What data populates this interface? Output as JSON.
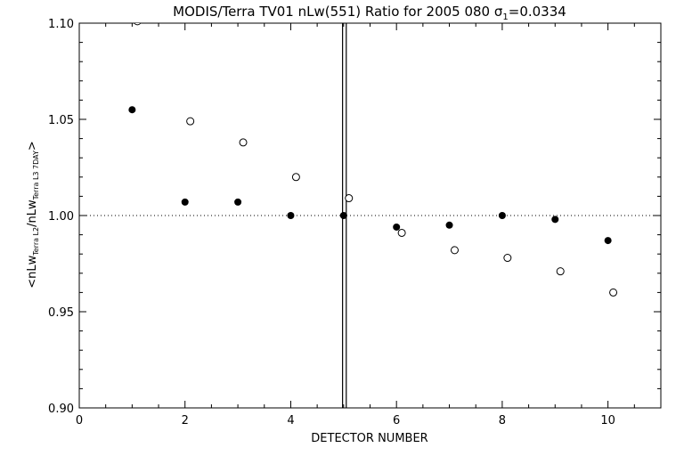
{
  "chart_data": {
    "type": "scatter",
    "title": "MODIS/Terra TV01 nLw(551) Ratio for 2005 080 σ",
    "title_sub": "1",
    "title_suffix": "=0.0334",
    "xlabel": "DETECTOR NUMBER",
    "ylabel": {
      "prefix": "<nLw",
      "sub1": "Terra L2",
      "mid": "/nLw",
      "sub2": "Terra L3 7DAY",
      "suffix": ">"
    },
    "xlim": [
      0,
      11
    ],
    "ylim": [
      0.9,
      1.1
    ],
    "x_ticks": [
      0,
      2,
      4,
      6,
      8,
      10
    ],
    "y_ticks": [
      0.9,
      0.95,
      1.0,
      1.05,
      1.1
    ],
    "x_tick_labels": [
      "0",
      "2",
      "4",
      "6",
      "8",
      "10"
    ],
    "y_tick_labels": [
      "0.90",
      "0.95",
      "1.00",
      "1.05",
      "1.10"
    ],
    "reference_line": 1.0,
    "vertical_lines": [
      4.98,
      5.05
    ],
    "series": [
      {
        "marker": "filled-circle",
        "x": [
          1,
          2,
          3,
          4,
          5,
          6,
          7,
          8,
          9,
          10
        ],
        "y": [
          1.055,
          1.007,
          1.007,
          1.0,
          1.0,
          0.994,
          0.995,
          1.0,
          0.998,
          0.987
        ]
      },
      {
        "marker": "open-circle",
        "x": [
          1.1,
          2.1,
          3.1,
          4.1,
          5.1,
          6.1,
          7.1,
          8.1,
          9.1,
          10.1
        ],
        "y": [
          1.101,
          1.049,
          1.038,
          1.02,
          1.009,
          0.991,
          0.982,
          0.978,
          0.971,
          0.96
        ]
      }
    ]
  }
}
